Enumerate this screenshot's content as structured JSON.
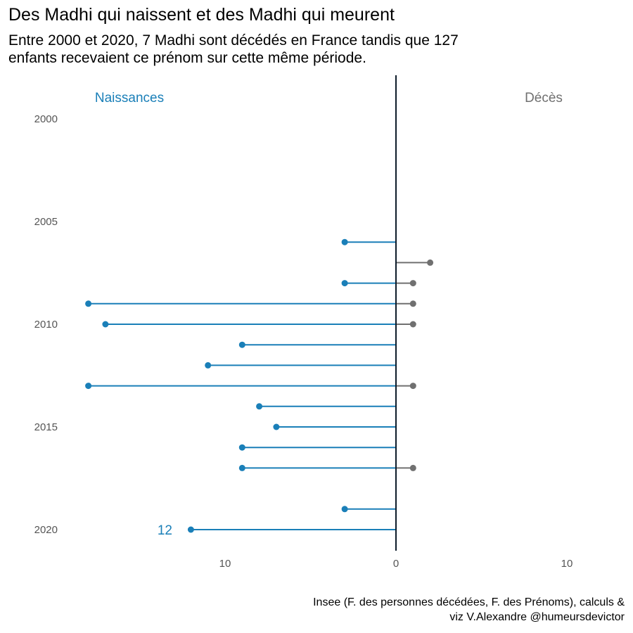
{
  "title": "Des Madhi qui naissent et des Madhi qui meurent",
  "subtitle_lines": [
    "Entre 2000 et 2020, 7 Madhi sont décédés en France tandis que 127",
    "enfants recevaient ce prénom sur cette même période."
  ],
  "caption_lines": [
    "Insee (F. des personnes décédées, F. des Prénoms), calculs &",
    "viz V.Alexandre @humeursdevictor"
  ],
  "colors": {
    "births": "#1a7fb8",
    "deaths": "#707070",
    "axis": "#0d1b2a"
  },
  "chart_data": {
    "type": "lollipop (diverging bar)",
    "title": "Des Madhi qui naissent et des Madhi qui meurent",
    "left_label": "Naissances",
    "right_label": "Décès",
    "years": [
      2000,
      2001,
      2002,
      2003,
      2004,
      2005,
      2006,
      2007,
      2008,
      2009,
      2010,
      2011,
      2012,
      2013,
      2014,
      2015,
      2016,
      2017,
      2018,
      2019,
      2020
    ],
    "y_ticks": [
      "2000",
      "2005",
      "2010",
      "2015",
      "2020"
    ],
    "x_ticks": [
      {
        "value": -10,
        "label": "10"
      },
      {
        "value": 0,
        "label": "0"
      },
      {
        "value": 10,
        "label": "10"
      }
    ],
    "xlim": [
      -18,
      13
    ],
    "series": [
      {
        "name": "Naissances",
        "values": [
          0,
          0,
          0,
          0,
          0,
          0,
          3,
          0,
          3,
          18,
          17,
          9,
          11,
          18,
          8,
          7,
          9,
          9,
          0,
          3,
          12
        ]
      },
      {
        "name": "Décès",
        "values": [
          0,
          0,
          0,
          0,
          0,
          0,
          0,
          2,
          1,
          1,
          1,
          0,
          0,
          1,
          0,
          0,
          0,
          1,
          0,
          0,
          0
        ]
      }
    ],
    "annotation": {
      "text": "12",
      "year": 2020
    }
  }
}
